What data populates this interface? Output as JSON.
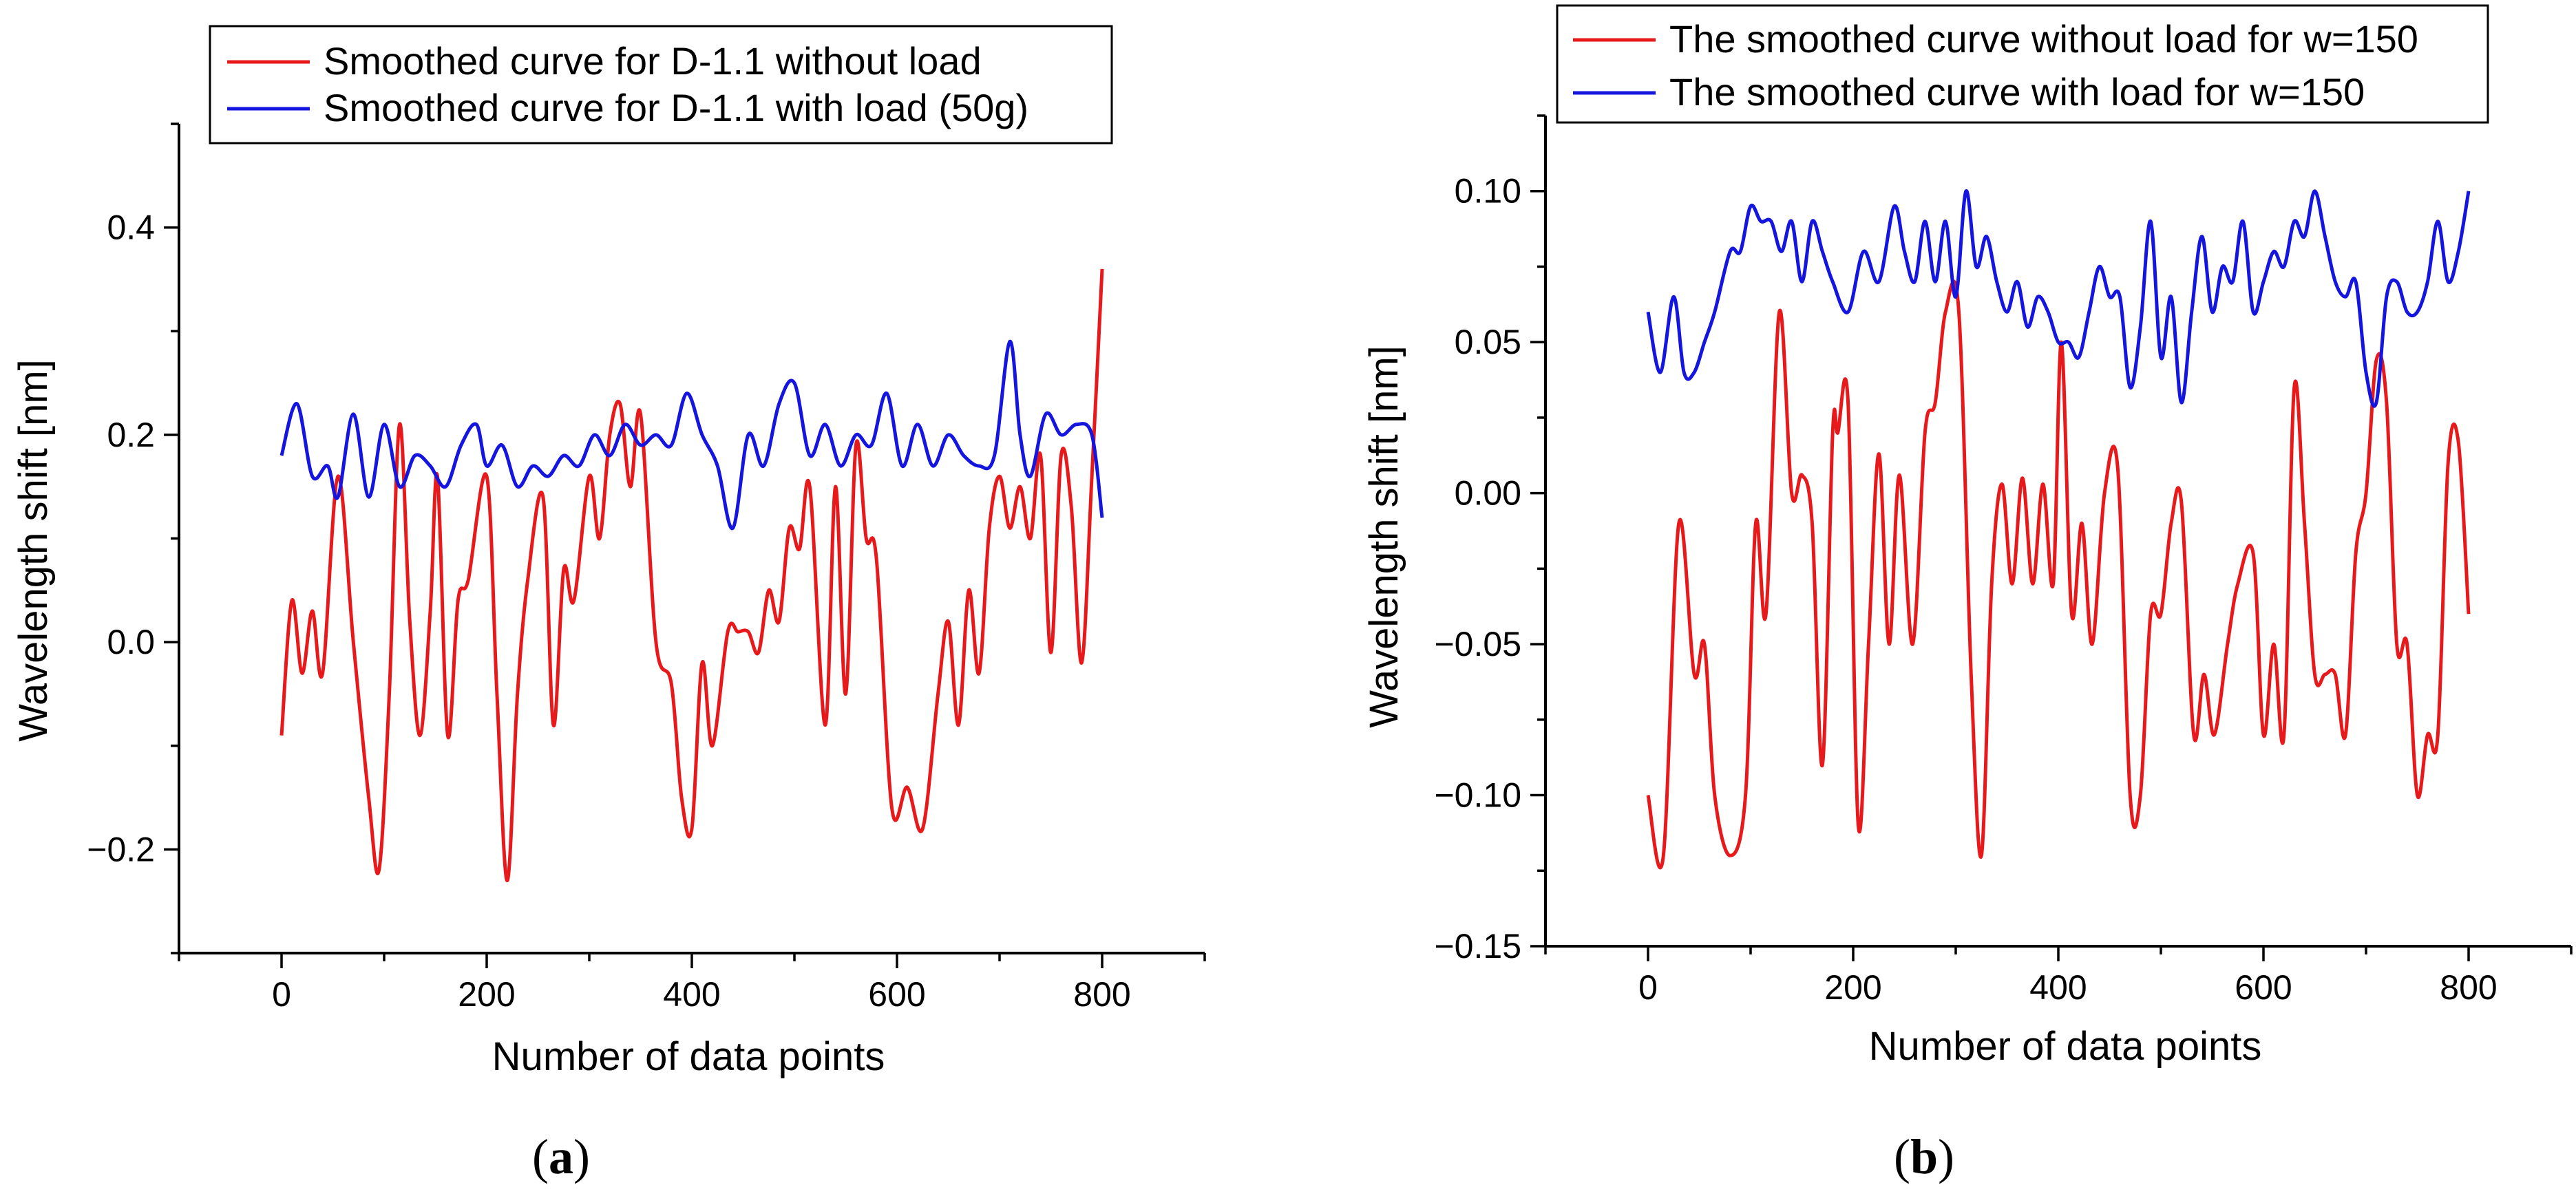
{
  "chart_data": [
    {
      "type": "line",
      "caption_letter": "a",
      "xlabel": "Number of data points",
      "ylabel": "Wavelength shift [nm]",
      "xlim": [
        -100,
        900
      ],
      "ylim": [
        -0.3,
        0.5
      ],
      "xticks": [
        0,
        200,
        400,
        600,
        800
      ],
      "xtick_labels": [
        "0",
        "200",
        "400",
        "600",
        "800"
      ],
      "yticks": [
        -0.2,
        0.0,
        0.2,
        0.4
      ],
      "ytick_labels": [
        "−0.2",
        "0.0",
        "0.2",
        "0.4"
      ],
      "legend_position": "top",
      "series": [
        {
          "name": "Smoothed curve for D-1.1 without load",
          "color": "#e8191b",
          "x": [
            0,
            10,
            20,
            30,
            40,
            55,
            70,
            85,
            95,
            105,
            115,
            125,
            135,
            145,
            152,
            162,
            172,
            182,
            200,
            210,
            220,
            230,
            240,
            255,
            265,
            275,
            285,
            300,
            310,
            320,
            330,
            340,
            350,
            365,
            380,
            390,
            400,
            410,
            420,
            435,
            445,
            455,
            465,
            475,
            485,
            495,
            505,
            515,
            530,
            540,
            550,
            560,
            570,
            580,
            595,
            610,
            625,
            640,
            650,
            660,
            670,
            680,
            690,
            700,
            710,
            720,
            730,
            740,
            750,
            760,
            770,
            780,
            790,
            800
          ],
          "y": [
            -0.09,
            0.04,
            -0.03,
            0.03,
            -0.03,
            0.16,
            0.0,
            -0.15,
            -0.22,
            -0.05,
            0.21,
            0.02,
            -0.09,
            0.03,
            0.16,
            -0.09,
            0.04,
            0.06,
            0.16,
            -0.05,
            -0.23,
            -0.05,
            0.06,
            0.14,
            -0.08,
            0.07,
            0.04,
            0.16,
            0.1,
            0.2,
            0.23,
            0.15,
            0.22,
            0.0,
            -0.04,
            -0.15,
            -0.18,
            -0.02,
            -0.1,
            0.01,
            0.01,
            0.01,
            -0.01,
            0.05,
            0.02,
            0.11,
            0.09,
            0.15,
            -0.08,
            0.15,
            -0.05,
            0.19,
            0.1,
            0.08,
            -0.16,
            -0.14,
            -0.18,
            -0.05,
            0.02,
            -0.08,
            0.05,
            -0.03,
            0.11,
            0.16,
            0.11,
            0.15,
            0.1,
            0.18,
            -0.01,
            0.18,
            0.13,
            -0.02,
            0.16,
            0.36
          ]
        },
        {
          "name": "Smoothed curve for D-1.1 with load (50g)",
          "color": "#1515e0",
          "x": [
            0,
            15,
            30,
            45,
            55,
            70,
            85,
            100,
            115,
            130,
            145,
            160,
            175,
            190,
            200,
            215,
            230,
            245,
            260,
            275,
            290,
            305,
            320,
            335,
            350,
            365,
            380,
            395,
            410,
            425,
            440,
            455,
            470,
            485,
            500,
            515,
            530,
            545,
            560,
            575,
            590,
            605,
            620,
            635,
            650,
            665,
            680,
            695,
            710,
            720,
            730,
            745,
            760,
            775,
            790,
            800
          ],
          "y": [
            0.18,
            0.23,
            0.16,
            0.17,
            0.14,
            0.22,
            0.14,
            0.21,
            0.15,
            0.18,
            0.17,
            0.15,
            0.19,
            0.21,
            0.17,
            0.19,
            0.15,
            0.17,
            0.16,
            0.18,
            0.17,
            0.2,
            0.18,
            0.21,
            0.19,
            0.2,
            0.19,
            0.24,
            0.2,
            0.17,
            0.11,
            0.2,
            0.17,
            0.23,
            0.25,
            0.18,
            0.21,
            0.17,
            0.2,
            0.19,
            0.24,
            0.17,
            0.21,
            0.17,
            0.2,
            0.18,
            0.17,
            0.18,
            0.29,
            0.2,
            0.16,
            0.22,
            0.2,
            0.21,
            0.2,
            0.12
          ]
        }
      ]
    },
    {
      "type": "line",
      "caption_letter": "b",
      "xlabel": "Number of data points",
      "ylabel": "Wavelength shift [nm]",
      "xlim": [
        -100,
        900
      ],
      "ylim": [
        -0.15,
        0.125
      ],
      "xticks": [
        0,
        200,
        400,
        600,
        800
      ],
      "xtick_labels": [
        "0",
        "200",
        "400",
        "600",
        "800"
      ],
      "yticks": [
        -0.15,
        -0.1,
        -0.05,
        0.0,
        0.05,
        0.1
      ],
      "ytick_labels": [
        "−0.15",
        "−0.10",
        "−0.05",
        "0.00",
        "0.05",
        "0.10"
      ],
      "legend_position": "top",
      "series": [
        {
          "name": "The smoothed curve without load for w=150",
          "color": "#e8191b",
          "x": [
            0,
            15,
            30,
            45,
            55,
            65,
            80,
            95,
            105,
            115,
            128,
            140,
            150,
            160,
            170,
            180,
            185,
            195,
            205,
            215,
            225,
            235,
            245,
            258,
            270,
            280,
            290,
            303,
            315,
            325,
            335,
            345,
            355,
            365,
            375,
            385,
            395,
            403,
            413,
            423,
            433,
            445,
            458,
            470,
            480,
            490,
            500,
            510,
            520,
            532,
            542,
            552,
            565,
            575,
            590,
            600,
            610,
            620,
            630,
            640,
            650,
            660,
            670,
            680,
            690,
            700,
            710,
            720,
            730,
            740,
            750,
            760,
            770,
            780,
            790,
            800
          ],
          "y": [
            -0.1,
            -0.12,
            -0.01,
            -0.06,
            -0.05,
            -0.1,
            -0.12,
            -0.1,
            -0.01,
            -0.04,
            0.06,
            0.0,
            0.006,
            -0.01,
            -0.09,
            0.02,
            0.02,
            0.03,
            -0.11,
            -0.05,
            0.013,
            -0.05,
            0.006,
            -0.05,
            0.02,
            0.03,
            0.06,
            0.06,
            -0.06,
            -0.12,
            -0.03,
            0.003,
            -0.03,
            0.005,
            -0.03,
            0.003,
            -0.03,
            0.05,
            -0.04,
            -0.01,
            -0.05,
            0.0,
            0.008,
            -0.1,
            -0.1,
            -0.04,
            -0.04,
            -0.01,
            -0.003,
            -0.08,
            -0.06,
            -0.08,
            -0.05,
            -0.03,
            -0.02,
            -0.08,
            -0.05,
            -0.08,
            0.035,
            -0.01,
            -0.06,
            -0.06,
            -0.06,
            -0.08,
            -0.02,
            0.0,
            0.044,
            0.03,
            -0.05,
            -0.05,
            -0.1,
            -0.08,
            -0.08,
            0.01,
            0.017,
            -0.04
          ]
        },
        {
          "name": "The smoothed curve with load for w=150",
          "color": "#1515e0",
          "x": [
            0,
            12,
            25,
            35,
            45,
            55,
            65,
            80,
            90,
            100,
            110,
            120,
            130,
            140,
            150,
            160,
            170,
            180,
            195,
            210,
            225,
            240,
            250,
            260,
            270,
            280,
            290,
            300,
            310,
            320,
            330,
            340,
            350,
            360,
            370,
            380,
            390,
            400,
            410,
            420,
            430,
            440,
            450,
            460,
            470,
            480,
            490,
            500,
            510,
            520,
            530,
            540,
            550,
            560,
            570,
            580,
            590,
            600,
            610,
            620,
            630,
            640,
            650,
            660,
            670,
            680,
            690,
            700,
            710,
            720,
            730,
            740,
            750,
            760,
            770,
            780,
            790,
            800
          ],
          "y": [
            0.06,
            0.04,
            0.065,
            0.04,
            0.04,
            0.05,
            0.06,
            0.08,
            0.08,
            0.095,
            0.09,
            0.09,
            0.08,
            0.09,
            0.07,
            0.09,
            0.08,
            0.07,
            0.06,
            0.08,
            0.07,
            0.095,
            0.08,
            0.07,
            0.09,
            0.07,
            0.09,
            0.065,
            0.1,
            0.075,
            0.085,
            0.07,
            0.06,
            0.07,
            0.055,
            0.065,
            0.06,
            0.05,
            0.05,
            0.045,
            0.06,
            0.075,
            0.065,
            0.065,
            0.035,
            0.055,
            0.09,
            0.045,
            0.065,
            0.03,
            0.06,
            0.085,
            0.06,
            0.075,
            0.07,
            0.09,
            0.06,
            0.07,
            0.08,
            0.075,
            0.09,
            0.085,
            0.1,
            0.085,
            0.07,
            0.065,
            0.07,
            0.04,
            0.03,
            0.065,
            0.07,
            0.06,
            0.06,
            0.07,
            0.09,
            0.07,
            0.08,
            0.1
          ]
        }
      ]
    }
  ]
}
